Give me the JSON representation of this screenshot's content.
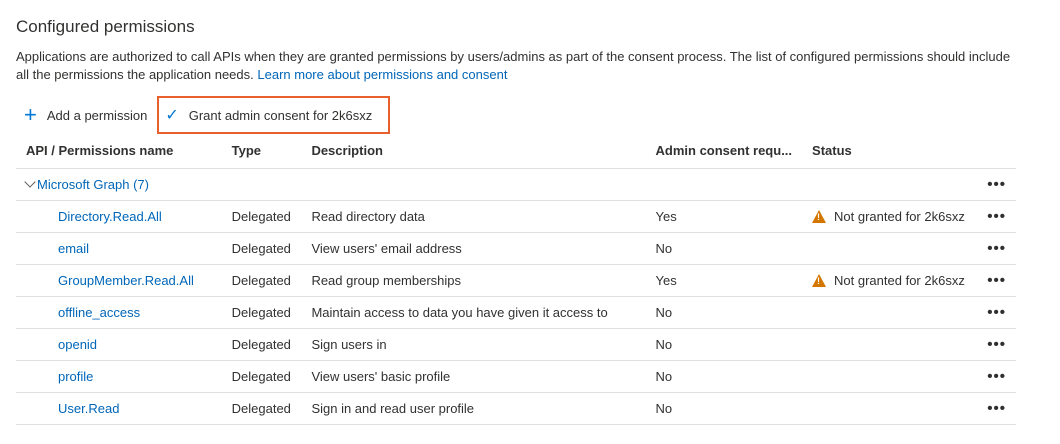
{
  "title": "Configured permissions",
  "description": "Applications are authorized to call APIs when they are granted permissions by users/admins as part of the consent process. The list of configured permissions should include all the permissions the application needs.",
  "learn_more": "Learn more about permissions and consent",
  "toolbar": {
    "add": "Add a permission",
    "grant": "Grant admin consent for 2k6sxz"
  },
  "columns": [
    "API / Permissions name",
    "Type",
    "Description",
    "Admin consent requ...",
    "Status"
  ],
  "group": {
    "label": "Microsoft Graph (7)"
  },
  "more": "•••",
  "rows": [
    {
      "name": "Directory.Read.All",
      "type": "Delegated",
      "description": "Read directory data",
      "admin": "Yes",
      "status": "Not granted for 2k6sxz"
    },
    {
      "name": "email",
      "type": "Delegated",
      "description": "View users' email address",
      "admin": "No",
      "status": ""
    },
    {
      "name": "GroupMember.Read.All",
      "type": "Delegated",
      "description": "Read group memberships",
      "admin": "Yes",
      "status": "Not granted for 2k6sxz"
    },
    {
      "name": "offline_access",
      "type": "Delegated",
      "description": "Maintain access to data you have given it access to",
      "admin": "No",
      "status": ""
    },
    {
      "name": "openid",
      "type": "Delegated",
      "description": "Sign users in",
      "admin": "No",
      "status": ""
    },
    {
      "name": "profile",
      "type": "Delegated",
      "description": "View users' basic profile",
      "admin": "No",
      "status": ""
    },
    {
      "name": "User.Read",
      "type": "Delegated",
      "description": "Sign in and read user profile",
      "admin": "No",
      "status": ""
    }
  ],
  "colors": {
    "link": "#0066b8",
    "accent": "#0078d4",
    "highlight": "#e8612c",
    "warning": "#d47500"
  }
}
